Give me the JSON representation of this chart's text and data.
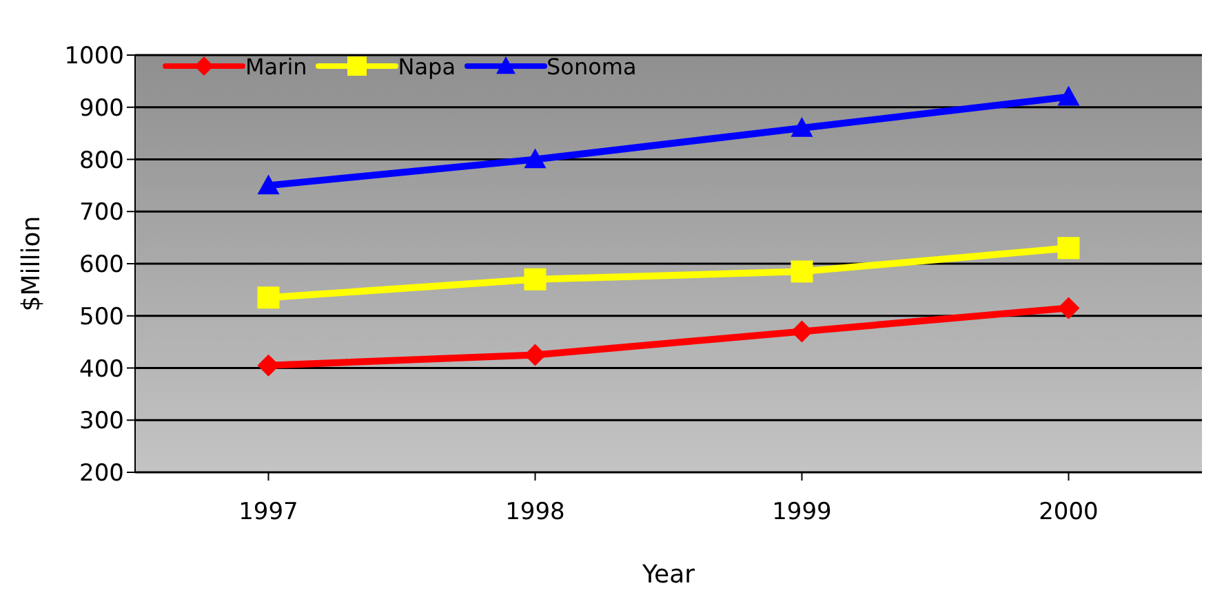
{
  "chart_data": {
    "type": "line",
    "xlabel": "Year",
    "ylabel": "$Million",
    "categories": [
      "1997",
      "1998",
      "1999",
      "2000"
    ],
    "series": [
      {
        "name": "Marin",
        "color": "#ff0000",
        "marker": "diamond",
        "values": [
          405,
          425,
          470,
          515
        ]
      },
      {
        "name": "Napa",
        "color": "#ffff00",
        "marker": "square",
        "values": [
          535,
          570,
          585,
          630
        ]
      },
      {
        "name": "Sonoma",
        "color": "#0000ff",
        "marker": "triangle",
        "values": [
          750,
          800,
          860,
          920
        ]
      }
    ],
    "ylim": [
      200,
      1000
    ],
    "yticks": [
      200,
      300,
      400,
      500,
      600,
      700,
      800,
      900,
      1000
    ],
    "grid": "y",
    "legend": "top left"
  }
}
